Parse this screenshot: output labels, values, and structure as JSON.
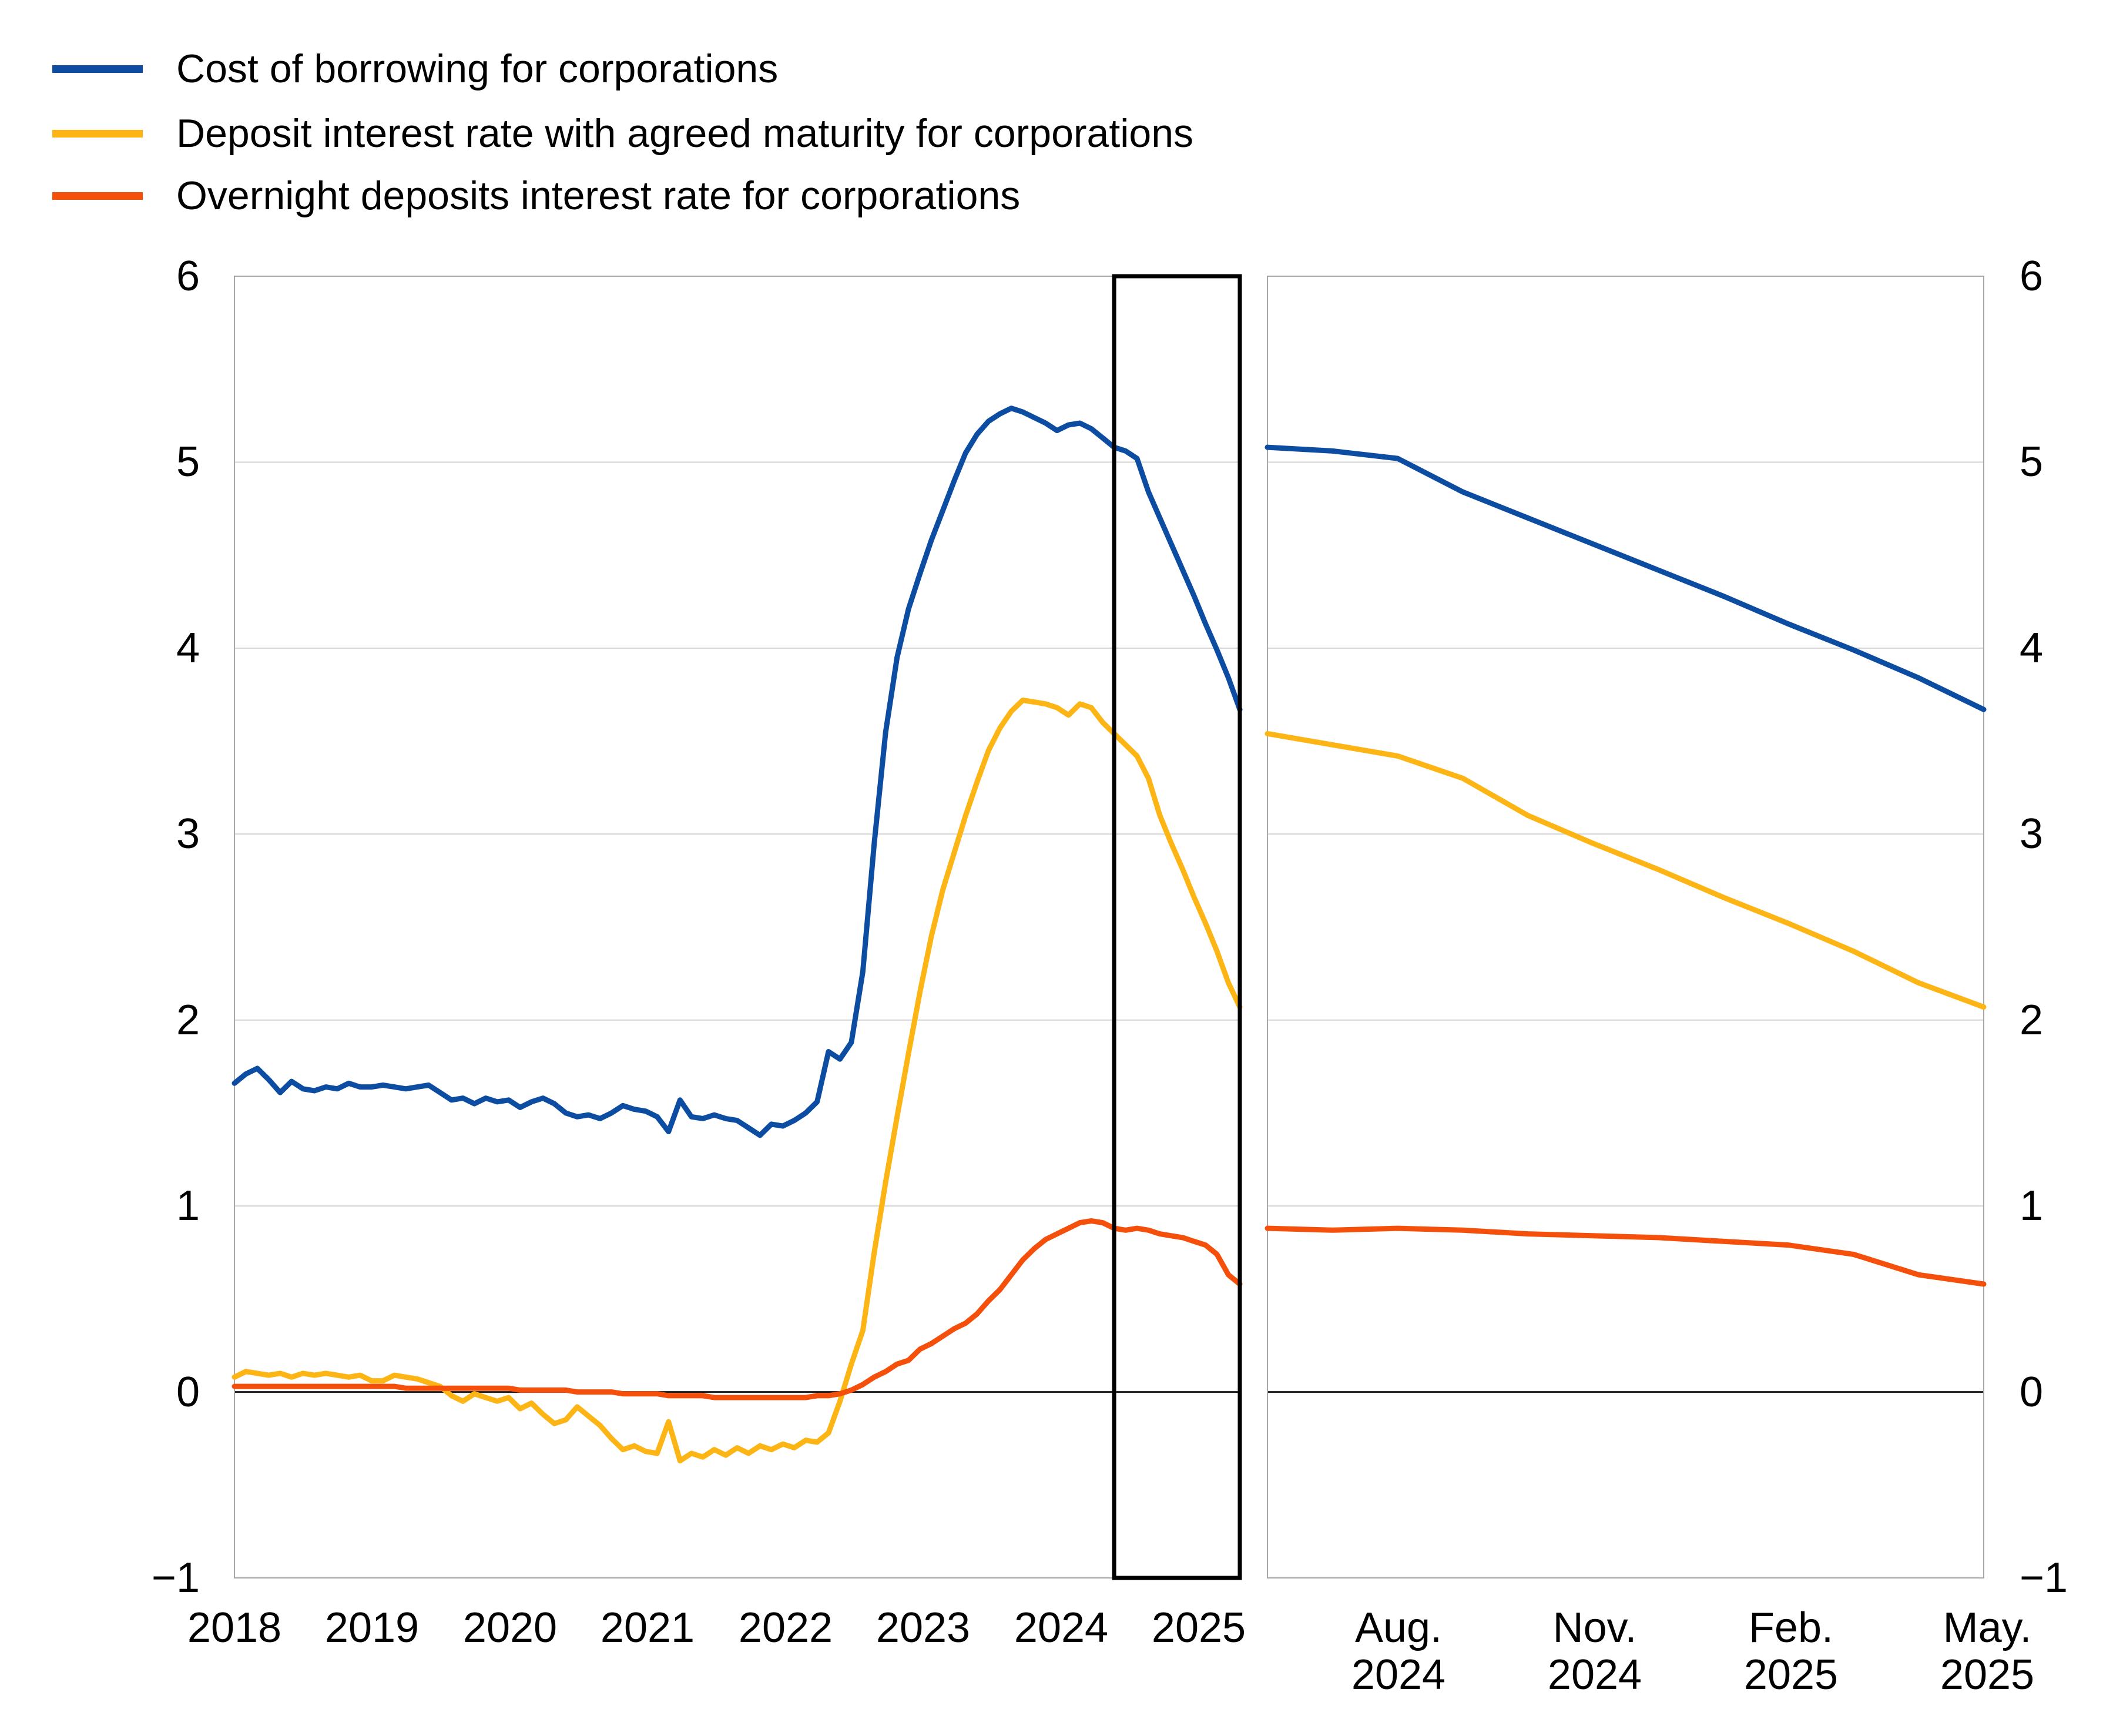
{
  "legend": {
    "items": [
      {
        "label": "Cost of borrowing for corporations",
        "color": "#0C4DA2"
      },
      {
        "label": "Deposit interest rate with agreed maturity for corporations",
        "color": "#FDB515"
      },
      {
        "label": "Overnight deposits interest rate for corporations",
        "color": "#F4500C"
      }
    ]
  },
  "axis": {
    "y_ticks": [
      "6",
      "5",
      "4",
      "3",
      "2",
      "1",
      "0",
      "−1"
    ],
    "ymin": -1,
    "ymax": 6
  },
  "panels": {
    "left": {
      "x_labels": [
        "2018",
        "2019",
        "2020",
        "2021",
        "2022",
        "2023",
        "2024",
        "2025"
      ]
    },
    "right": {
      "x_labels": [
        [
          "Aug.",
          "2024"
        ],
        [
          "Nov.",
          "2024"
        ],
        [
          "Feb.",
          "2025"
        ],
        [
          "May.",
          "2025"
        ]
      ]
    }
  },
  "colors": {
    "grid": "#D3D3D3",
    "frame": "#A8A8A8",
    "zero_line": "#1A1A1A",
    "highlight_box": "#000000",
    "background": "#FFFFFF"
  },
  "chart_data": [
    {
      "type": "line",
      "panel": "left",
      "title": "",
      "xlabel": "",
      "ylabel": "",
      "x_start": "2018-01",
      "x_end": "2025-05",
      "frequency": "monthly",
      "x_tick_labels": [
        "2018",
        "2019",
        "2020",
        "2021",
        "2022",
        "2023",
        "2024",
        "2025"
      ],
      "ylim": [
        -1,
        6
      ],
      "grid": "horizontal",
      "legend_position": "top-left",
      "highlight_box": {
        "from": "2024-06",
        "to": "2025-05",
        "from_index": 77,
        "to_index": 88
      },
      "series": [
        {
          "name": "Cost of borrowing for corporations",
          "color": "#0C4DA2",
          "values": [
            1.66,
            1.71,
            1.74,
            1.68,
            1.61,
            1.67,
            1.63,
            1.62,
            1.64,
            1.63,
            1.66,
            1.64,
            1.64,
            1.65,
            1.64,
            1.63,
            1.64,
            1.65,
            1.61,
            1.57,
            1.58,
            1.55,
            1.58,
            1.56,
            1.57,
            1.53,
            1.56,
            1.58,
            1.55,
            1.5,
            1.48,
            1.49,
            1.47,
            1.5,
            1.54,
            1.52,
            1.51,
            1.48,
            1.4,
            1.57,
            1.48,
            1.47,
            1.49,
            1.47,
            1.46,
            1.42,
            1.38,
            1.44,
            1.43,
            1.46,
            1.5,
            1.56,
            1.83,
            1.79,
            1.88,
            2.26,
            2.95,
            3.55,
            3.95,
            4.21,
            4.4,
            4.58,
            4.74,
            4.9,
            5.05,
            5.15,
            5.22,
            5.26,
            5.29,
            5.27,
            5.24,
            5.21,
            5.17,
            5.2,
            5.21,
            5.18,
            5.13,
            5.08,
            5.06,
            5.02,
            4.84,
            4.7,
            4.56,
            4.42,
            4.28,
            4.13,
            3.99,
            3.84,
            3.67
          ]
        },
        {
          "name": "Deposit interest rate with agreed maturity for corporations",
          "color": "#FDB515",
          "values": [
            0.08,
            0.11,
            0.1,
            0.09,
            0.1,
            0.08,
            0.1,
            0.09,
            0.1,
            0.09,
            0.08,
            0.09,
            0.06,
            0.06,
            0.09,
            0.08,
            0.07,
            0.05,
            0.03,
            -0.02,
            -0.05,
            -0.01,
            -0.03,
            -0.05,
            -0.03,
            -0.09,
            -0.06,
            -0.12,
            -0.17,
            -0.15,
            -0.08,
            -0.13,
            -0.18,
            -0.25,
            -0.31,
            -0.29,
            -0.32,
            -0.33,
            -0.16,
            -0.37,
            -0.33,
            -0.35,
            -0.31,
            -0.34,
            -0.3,
            -0.33,
            -0.29,
            -0.31,
            -0.28,
            -0.3,
            -0.26,
            -0.27,
            -0.22,
            -0.05,
            0.15,
            0.33,
            0.75,
            1.13,
            1.48,
            1.82,
            2.15,
            2.45,
            2.7,
            2.9,
            3.1,
            3.28,
            3.45,
            3.57,
            3.66,
            3.72,
            3.71,
            3.7,
            3.68,
            3.64,
            3.7,
            3.68,
            3.6,
            3.54,
            3.48,
            3.42,
            3.3,
            3.1,
            2.95,
            2.81,
            2.66,
            2.52,
            2.37,
            2.2,
            2.07
          ]
        },
        {
          "name": "Overnight deposits interest rate for corporations",
          "color": "#F4500C",
          "values": [
            0.03,
            0.03,
            0.03,
            0.03,
            0.03,
            0.03,
            0.03,
            0.03,
            0.03,
            0.03,
            0.03,
            0.03,
            0.03,
            0.03,
            0.03,
            0.02,
            0.02,
            0.02,
            0.02,
            0.02,
            0.02,
            0.02,
            0.02,
            0.02,
            0.02,
            0.01,
            0.01,
            0.01,
            0.01,
            0.01,
            0.0,
            0.0,
            0.0,
            0.0,
            -0.01,
            -0.01,
            -0.01,
            -0.01,
            -0.02,
            -0.02,
            -0.02,
            -0.02,
            -0.03,
            -0.03,
            -0.03,
            -0.03,
            -0.03,
            -0.03,
            -0.03,
            -0.03,
            -0.03,
            -0.02,
            -0.02,
            -0.01,
            0.01,
            0.04,
            0.08,
            0.11,
            0.15,
            0.17,
            0.23,
            0.26,
            0.3,
            0.34,
            0.37,
            0.42,
            0.49,
            0.55,
            0.63,
            0.71,
            0.77,
            0.82,
            0.85,
            0.88,
            0.91,
            0.92,
            0.91,
            0.88,
            0.87,
            0.88,
            0.87,
            0.85,
            0.84,
            0.83,
            0.81,
            0.79,
            0.74,
            0.63,
            0.58
          ]
        }
      ]
    },
    {
      "type": "line",
      "panel": "right",
      "title": "",
      "xlabel": "",
      "ylabel": "",
      "x_start": "2024-06",
      "x_end": "2025-05",
      "frequency": "monthly",
      "x_tick_labels": [
        "Aug. 2024",
        "Nov. 2024",
        "Feb. 2025",
        "May. 2025"
      ],
      "ylim": [
        -1,
        6
      ],
      "grid": "horizontal",
      "series": [
        {
          "name": "Cost of borrowing for corporations",
          "color": "#0C4DA2",
          "values": [
            5.08,
            5.06,
            5.02,
            4.84,
            4.7,
            4.56,
            4.42,
            4.28,
            4.13,
            3.99,
            3.84,
            3.67
          ]
        },
        {
          "name": "Deposit interest rate with agreed maturity for corporations",
          "color": "#FDB515",
          "values": [
            3.54,
            3.48,
            3.42,
            3.3,
            3.1,
            2.95,
            2.81,
            2.66,
            2.52,
            2.37,
            2.2,
            2.07
          ]
        },
        {
          "name": "Overnight deposits interest rate for corporations",
          "color": "#F4500C",
          "values": [
            0.88,
            0.87,
            0.88,
            0.87,
            0.85,
            0.84,
            0.83,
            0.81,
            0.79,
            0.74,
            0.63,
            0.58
          ]
        }
      ]
    }
  ]
}
